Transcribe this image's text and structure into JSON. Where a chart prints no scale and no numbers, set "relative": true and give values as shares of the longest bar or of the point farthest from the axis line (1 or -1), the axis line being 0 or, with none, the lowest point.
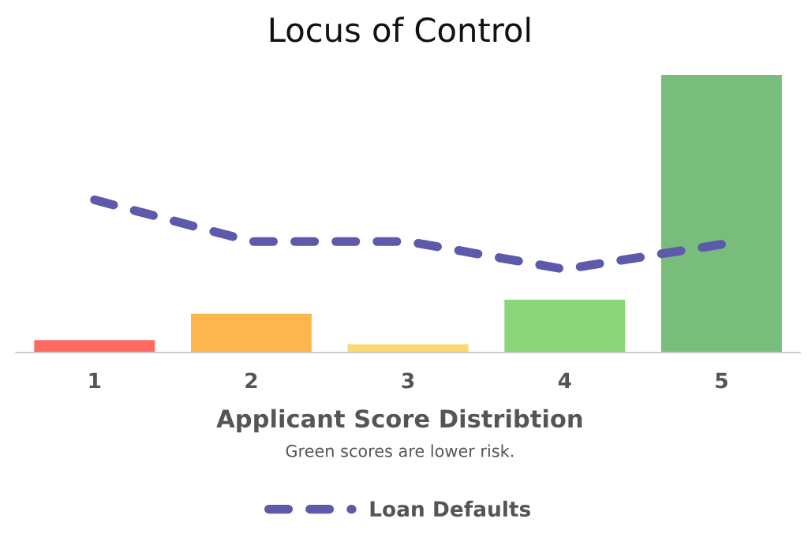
{
  "chart_data": {
    "type": "bar",
    "title": "Locus of Control",
    "xlabel": "Applicant Score Distribtion",
    "annotations": [
      "Green scores are lower risk."
    ],
    "categories": [
      "1",
      "2",
      "3",
      "4",
      "5"
    ],
    "relative": true,
    "series": [
      {
        "colors": [
          "#fe6a62",
          "#fdb64e",
          "#fbd970",
          "#8ad57a",
          "#79bd7c"
        ],
        "values": [
          0.045,
          0.14,
          0.03,
          0.19,
          1
        ]
      },
      {
        "type": "line",
        "name": "Loan Defaults",
        "color": "#5d5aab",
        "line_style": "dashed",
        "values": [
          0.55,
          0.4,
          0.4,
          0.3,
          0.39
        ]
      }
    ],
    "legend": "bottom",
    "grid": false
  }
}
